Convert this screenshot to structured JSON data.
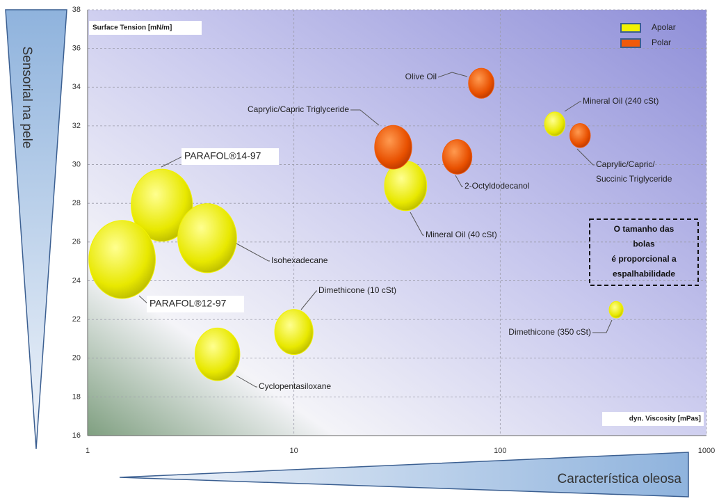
{
  "chart_data": {
    "type": "bubble",
    "y_label": "Surface Tension [mN/m]",
    "x_label": "dyn. Viscosity [mPas]",
    "x_scale": "log",
    "xlim": [
      1,
      1000
    ],
    "xticks": [
      1,
      10,
      100,
      1000
    ],
    "ylim": [
      16,
      38
    ],
    "yticks": [
      16,
      18,
      20,
      22,
      24,
      26,
      28,
      30,
      32,
      34,
      36,
      38
    ],
    "grid": true,
    "legend": "top-right",
    "left_arrow_label": "Sensorial na pele",
    "bottom_arrow_label": "Característica oleosa",
    "note": [
      "O tamanho das",
      "bolas",
      "é proporcional a",
      "espalhabilidade"
    ],
    "series": [
      {
        "name": "Apolar",
        "color": "#f2f200",
        "labels": [
          [
            "PARAFOL®14-97"
          ],
          [
            "PARAFOL®12-97"
          ],
          [
            "Isohexadecane"
          ],
          [
            "Cyclopentasiloxane"
          ],
          [
            "Dimethicone (10 cSt)"
          ],
          [
            "Mineral Oil (40 cSt)"
          ],
          [
            "Mineral Oil (240 cSt)"
          ],
          [
            "Dimethicone (350 cSt)"
          ]
        ],
        "x": [
          2.29,
          1.47,
          3.8,
          4.26,
          10,
          34.8,
          184,
          365
        ],
        "values": [
          27.9,
          25.1,
          26.2,
          20.2,
          21.35,
          28.9,
          32.1,
          22.5
        ],
        "sizes": [
          48,
          52,
          46,
          35,
          30,
          33,
          16,
          11
        ]
      },
      {
        "name": "Polar",
        "color": "#f05a0a",
        "labels": [
          [
            "Caprylic/Capric Triglyceride"
          ],
          [
            "2-Octyldodecanol"
          ],
          [
            "Olive Oil"
          ],
          [
            "Caprylic/Capric/",
            "Succinic Triglyceride"
          ]
        ],
        "x": [
          30.3,
          61.9,
          81,
          244
        ],
        "values": [
          30.9,
          30.4,
          34.2,
          31.5
        ],
        "sizes": [
          29,
          23,
          20,
          16
        ]
      }
    ]
  }
}
